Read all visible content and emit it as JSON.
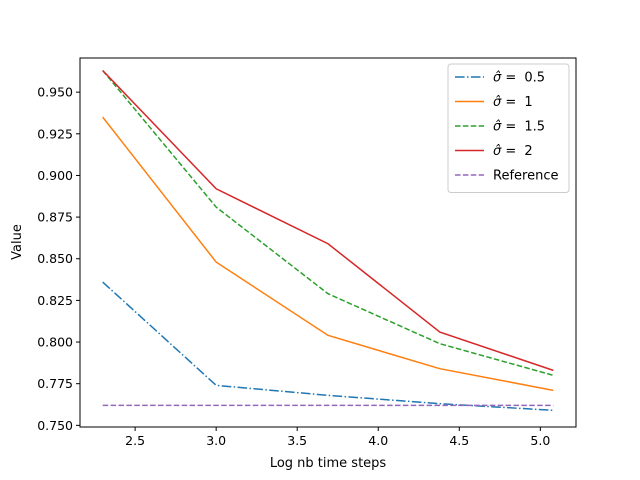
{
  "chart_data": {
    "type": "line",
    "xlabel": "Log nb time  steps",
    "ylabel": "Value",
    "xlim": [
      2.16,
      5.22
    ],
    "ylim": [
      0.749,
      0.9705
    ],
    "xticks": [
      2.5,
      3.0,
      3.5,
      4.0,
      4.5,
      5.0
    ],
    "xtick_labels": [
      "2.5",
      "3.0",
      "3.5",
      "4.0",
      "4.5",
      "5.0"
    ],
    "yticks": [
      0.75,
      0.775,
      0.8,
      0.825,
      0.85,
      0.875,
      0.9,
      0.925,
      0.95
    ],
    "ytick_labels": [
      "0.750",
      "0.775",
      "0.800",
      "0.825",
      "0.850",
      "0.875",
      "0.900",
      "0.925",
      "0.950"
    ],
    "grid": false,
    "legend_position": "top-right",
    "x": [
      2.3,
      3.0,
      3.69,
      4.38,
      5.08
    ],
    "series": [
      {
        "name": "σ̂ =  0.5",
        "name_prefix": "σ̂ = ",
        "name_value": "0.5",
        "color": "#1f77b4",
        "dash": "dashdot",
        "values": [
          0.836,
          0.774,
          0.768,
          0.763,
          0.759
        ]
      },
      {
        "name": "σ̂ =  1",
        "name_prefix": "σ̂ = ",
        "name_value": "1",
        "color": "#ff7f0e",
        "dash": "solid",
        "values": [
          0.935,
          0.848,
          0.804,
          0.784,
          0.771
        ]
      },
      {
        "name": "σ̂ =  1.5",
        "name_prefix": "σ̂ = ",
        "name_value": "1.5",
        "color": "#2ca02c",
        "dash": "dashed",
        "values": [
          0.963,
          0.881,
          0.829,
          0.799,
          0.78
        ]
      },
      {
        "name": "σ̂ =  2",
        "name_prefix": "σ̂ = ",
        "name_value": "2",
        "color": "#d62728",
        "dash": "solid",
        "values": [
          0.963,
          0.892,
          0.859,
          0.806,
          0.783
        ]
      },
      {
        "name": "Reference",
        "name_prefix": "",
        "name_value": "Reference",
        "color": "#9467bd",
        "dash": "dashed",
        "values": [
          0.762,
          0.762,
          0.762,
          0.762,
          0.762
        ]
      }
    ]
  }
}
